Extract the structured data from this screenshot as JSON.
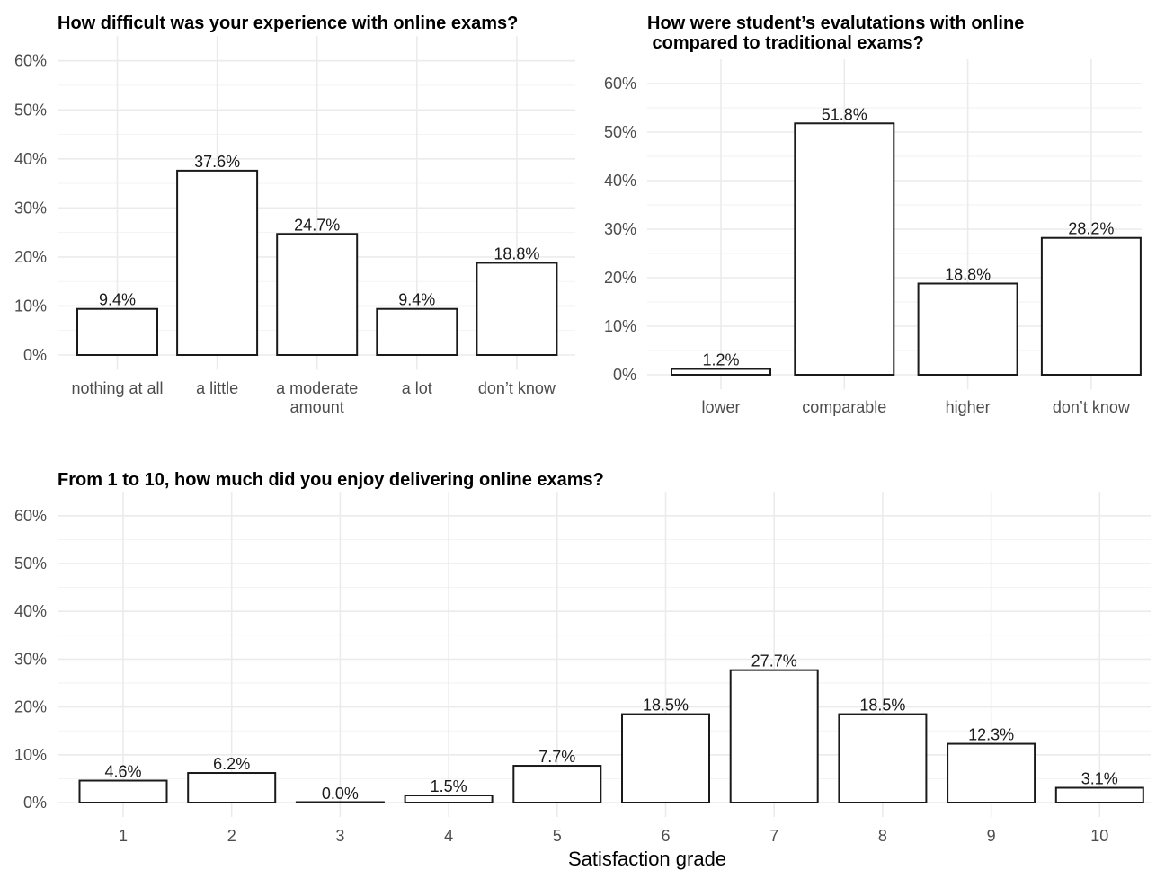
{
  "chart_data": [
    {
      "type": "bar",
      "title": "How difficult was your experience with online exams?",
      "categories": [
        [
          "nothing at all"
        ],
        [
          "a little"
        ],
        [
          "a moderate",
          "amount"
        ],
        [
          "a lot"
        ],
        [
          "don’t know"
        ]
      ],
      "values": [
        9.4,
        37.6,
        24.7,
        9.4,
        18.8
      ],
      "value_labels": [
        "9.4%",
        "37.6%",
        "24.7%",
        "9.4%",
        "18.8%"
      ],
      "y_ticks": [
        "0%",
        "10%",
        "20%",
        "30%",
        "40%",
        "50%",
        "60%"
      ],
      "ylim": [
        0,
        60
      ],
      "xlabel": "",
      "ylabel": "",
      "grid": true
    },
    {
      "type": "bar",
      "title": "How were student’s evalutations with online\n compared to traditional exams?",
      "categories": [
        [
          "lower"
        ],
        [
          "comparable"
        ],
        [
          "higher"
        ],
        [
          "don’t know"
        ]
      ],
      "values": [
        1.2,
        51.8,
        18.8,
        28.2
      ],
      "value_labels": [
        "1.2%",
        "51.8%",
        "18.8%",
        "28.2%"
      ],
      "y_ticks": [
        "0%",
        "10%",
        "20%",
        "30%",
        "40%",
        "50%",
        "60%"
      ],
      "ylim": [
        0,
        60
      ],
      "xlabel": "",
      "ylabel": "",
      "grid": true
    },
    {
      "type": "bar",
      "title": "From 1 to 10, how much did you enjoy delivering online exams?",
      "categories": [
        [
          "1"
        ],
        [
          "2"
        ],
        [
          "3"
        ],
        [
          "4"
        ],
        [
          "5"
        ],
        [
          "6"
        ],
        [
          "7"
        ],
        [
          "8"
        ],
        [
          "9"
        ],
        [
          "10"
        ]
      ],
      "values": [
        4.6,
        6.2,
        0.0,
        1.5,
        7.7,
        18.5,
        27.7,
        18.5,
        12.3,
        3.1
      ],
      "value_labels": [
        "4.6%",
        "6.2%",
        "0.0%",
        "1.5%",
        "7.7%",
        "18.5%",
        "27.7%",
        "18.5%",
        "12.3%",
        "3.1%"
      ],
      "y_ticks": [
        "0%",
        "10%",
        "20%",
        "30%",
        "40%",
        "50%",
        "60%"
      ],
      "ylim": [
        0,
        60
      ],
      "xlabel": "Satisfaction grade",
      "ylabel": "",
      "grid": true
    }
  ],
  "colors": {
    "bar_fill": "#ffffff",
    "bar_stroke": "#1a1a1a",
    "grid": "#ebebeb"
  }
}
